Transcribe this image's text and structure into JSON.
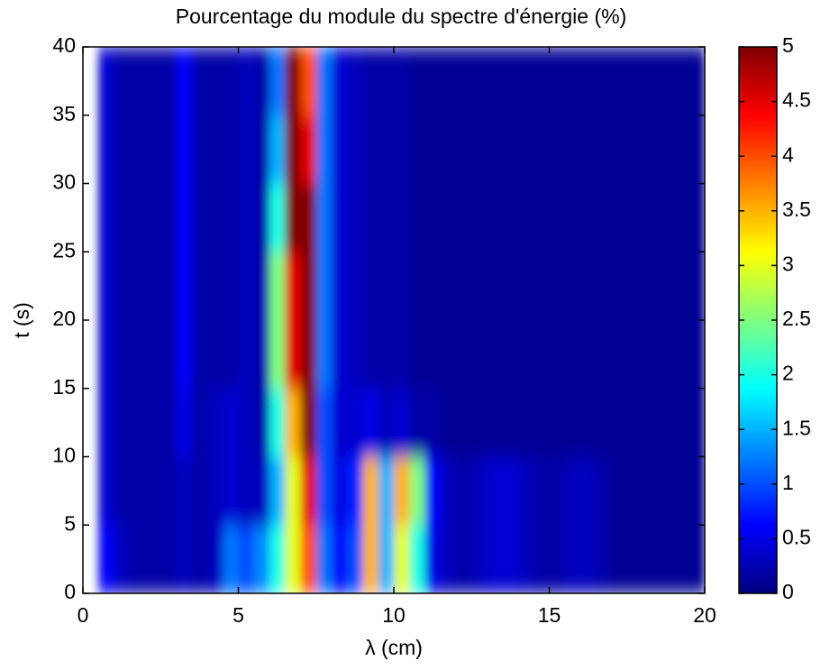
{
  "chart_data": {
    "type": "heatmap",
    "title": "Pourcentage du module du spectre d'énergie (%)",
    "xlabel": "λ (cm)",
    "ylabel": "t (s)",
    "colormap": "jet",
    "x": [
      0.25,
      0.75,
      1.25,
      1.75,
      2.25,
      2.75,
      3.25,
      3.75,
      4.25,
      4.75,
      5.25,
      5.75,
      6.25,
      6.75,
      7.25,
      7.75,
      8.25,
      8.75,
      9.25,
      9.75,
      10.25,
      10.75,
      11.25,
      11.75,
      12.25,
      12.75,
      13.25,
      13.75,
      14.25,
      14.75,
      15.25,
      15.75,
      16.25,
      16.75,
      17.25,
      17.75,
      18.25,
      18.75,
      19.25,
      19.75
    ],
    "y": [
      2.5,
      7.5,
      12.5,
      17.5,
      22.5,
      27.5,
      32.5,
      37.5
    ],
    "values": [
      [
        null,
        0.6,
        0.3,
        0.2,
        0.2,
        0.2,
        0.3,
        0.2,
        0.3,
        1.2,
        1.0,
        1.3,
        2,
        3,
        4,
        1.2,
        0.6,
        1.0,
        3.5,
        1.5,
        3,
        2,
        0.5,
        0.3,
        0.2,
        0.3,
        0.4,
        0.4,
        0.3,
        0.2,
        0.2,
        0.3,
        0.3,
        0.2,
        0.1,
        0.1,
        0.1,
        0.1,
        0.1,
        0.1
      ],
      [
        null,
        0.4,
        0.2,
        0.2,
        0.2,
        0.2,
        0.3,
        0.2,
        0.3,
        0.4,
        0.3,
        0.3,
        1.5,
        3,
        4.5,
        1,
        0.5,
        0.8,
        3.5,
        1.5,
        3.5,
        2.5,
        0.6,
        0.3,
        0.2,
        0.3,
        0.4,
        0.4,
        0.3,
        0.2,
        0.2,
        0.3,
        0.3,
        0.2,
        0.1,
        0.1,
        0.1,
        0.1,
        0.1,
        0.1
      ],
      [
        null,
        0.4,
        0.2,
        0.2,
        0.2,
        0.2,
        0.5,
        0.2,
        0.3,
        0.4,
        0.3,
        0.2,
        2,
        3.5,
        5,
        1.0,
        0.4,
        0.4,
        0.5,
        0.3,
        0.4,
        0.2,
        0.2,
        0.1,
        0.1,
        0.1,
        0.1,
        0.1,
        0.1,
        0.1,
        0.1,
        0.1,
        0.1,
        0.1,
        0.1,
        0.1,
        0.1,
        0.1,
        0.1,
        0.1
      ],
      [
        null,
        0.4,
        0.2,
        0.2,
        0.2,
        0.2,
        0.6,
        0.2,
        0.2,
        0.2,
        0.3,
        0.2,
        2.5,
        4.5,
        5,
        1.2,
        0.4,
        0.3,
        0.2,
        0.2,
        0.2,
        0.1,
        0.1,
        0.1,
        0.1,
        0.1,
        0.1,
        0.1,
        0.1,
        0.1,
        0.1,
        0.1,
        0.1,
        0.1,
        0.1,
        0.1,
        0.1,
        0.1,
        0.1,
        0.1
      ],
      [
        null,
        0.4,
        0.2,
        0.2,
        0.2,
        0.2,
        0.6,
        0.2,
        0.2,
        0.2,
        0.3,
        0.2,
        2.5,
        4.5,
        5,
        1.2,
        0.4,
        0.3,
        0.2,
        0.2,
        0.2,
        0.1,
        0.1,
        0.1,
        0.1,
        0.1,
        0.1,
        0.1,
        0.1,
        0.1,
        0.1,
        0.1,
        0.1,
        0.1,
        0.1,
        0.1,
        0.1,
        0.1,
        0.1,
        0.1
      ],
      [
        null,
        0.4,
        0.2,
        0.2,
        0.2,
        0.2,
        0.6,
        0.2,
        0.2,
        0.2,
        0.3,
        0.2,
        2,
        5,
        5,
        1.2,
        0.4,
        0.3,
        0.2,
        0.2,
        0.2,
        0.1,
        0.1,
        0.1,
        0.1,
        0.1,
        0.1,
        0.1,
        0.1,
        0.1,
        0.1,
        0.1,
        0.1,
        0.1,
        0.1,
        0.1,
        0.1,
        0.1,
        0.1,
        0.1
      ],
      [
        null,
        0.4,
        0.2,
        0.2,
        0.2,
        0.2,
        0.6,
        0.2,
        0.2,
        0.2,
        0.3,
        0.2,
        1.5,
        5,
        4.5,
        1.2,
        0.4,
        0.3,
        0.2,
        0.2,
        0.2,
        0.1,
        0.1,
        0.1,
        0.1,
        0.1,
        0.1,
        0.1,
        0.1,
        0.1,
        0.1,
        0.1,
        0.1,
        0.1,
        0.1,
        0.1,
        0.1,
        0.1,
        0.1,
        0.1
      ],
      [
        null,
        0.4,
        0.2,
        0.2,
        0.2,
        0.2,
        0.6,
        0.2,
        0.2,
        0.2,
        0.3,
        0.2,
        1.2,
        5,
        4,
        1.2,
        0.4,
        0.3,
        0.2,
        0.2,
        0.2,
        0.1,
        0.1,
        0.1,
        0.1,
        0.1,
        0.1,
        0.1,
        0.1,
        0.1,
        0.1,
        0.1,
        0.1,
        0.1,
        0.1,
        0.1,
        0.1,
        0.1,
        0.1,
        0.1
      ]
    ],
    "xlim": [
      0,
      20
    ],
    "xticks": [
      0,
      5,
      10,
      15,
      20
    ],
    "ylim": [
      0,
      40
    ],
    "yticks": [
      0,
      5,
      10,
      15,
      20,
      25,
      30,
      35,
      40
    ],
    "zlim": [
      0,
      5
    ],
    "zticks": [
      0,
      0.5,
      1,
      1.5,
      2,
      2.5,
      3,
      3.5,
      4,
      4.5,
      5
    ]
  }
}
